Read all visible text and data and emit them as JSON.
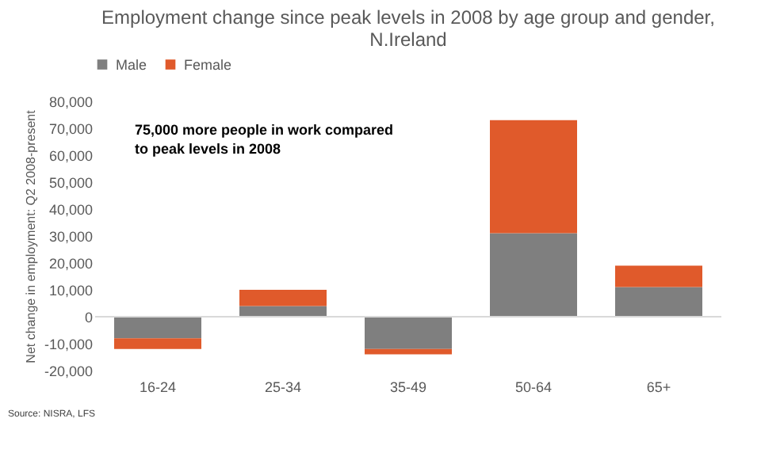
{
  "chart_data": {
    "type": "bar",
    "title": "Employment change since peak levels in 2008 by age group and gender, N.Ireland",
    "ylabel": "Net change in employment: Q2 2008-present",
    "categories": [
      "16-24",
      "25-34",
      "35-49",
      "50-64",
      "65+"
    ],
    "stacked": true,
    "legend": "top",
    "grid": false,
    "ylim": [
      -20000,
      80000
    ],
    "yticks": [
      {
        "value": -20000,
        "label": "-20,000"
      },
      {
        "value": -10000,
        "label": "-10,000"
      },
      0,
      {
        "value": 10000,
        "label": "10,000"
      },
      {
        "value": 20000,
        "label": "20,000"
      },
      {
        "value": 30000,
        "label": "30,000"
      },
      {
        "value": 40000,
        "label": "40,000"
      },
      {
        "value": 50000,
        "label": "50,000"
      },
      {
        "value": 60000,
        "label": "60,000"
      },
      {
        "value": 70000,
        "label": "70,000"
      },
      {
        "value": 80000,
        "label": "80,000"
      }
    ],
    "series": [
      {
        "name": "Male",
        "color": "#7f7f7f",
        "values": [
          -8000,
          4000,
          -12000,
          31000,
          11000
        ]
      },
      {
        "name": "Female",
        "color": "#e05a2b",
        "values": [
          -4000,
          6000,
          -2000,
          42000,
          8000
        ]
      }
    ],
    "ref_lines": [
      {
        "axis": "y",
        "value": 0,
        "color": "#d9d9d9"
      }
    ],
    "annotations": [
      "75,000 more people in work compared to peak levels in 2008",
      "Source: NISRA, LFS"
    ]
  }
}
